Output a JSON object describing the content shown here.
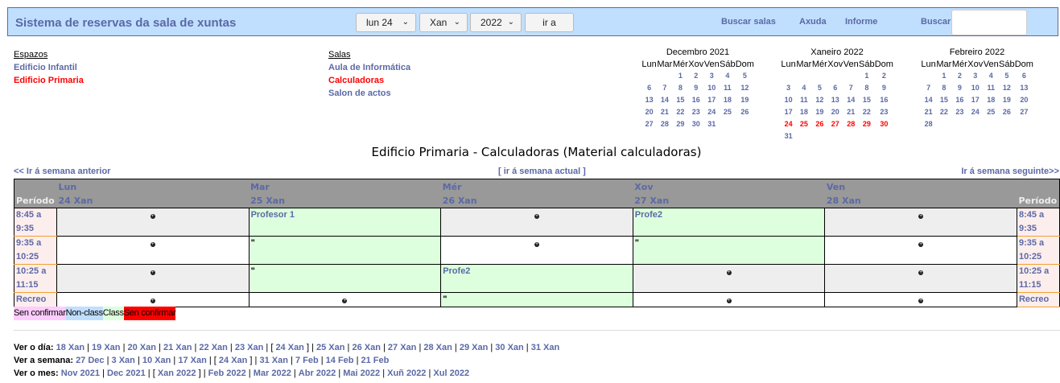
{
  "header": {
    "title": "Sistema de reservas da sala de xuntas",
    "day_select": "lun 24",
    "month_select": "Xan",
    "year_select": "2022",
    "goto_label": "ir a",
    "links": [
      "Buscar salas",
      "Axuda",
      "Informe"
    ],
    "search_label": "Buscar",
    "search_value": ""
  },
  "areas": {
    "heading": "Espazos",
    "items": [
      {
        "label": "Edificio Infantil",
        "selected": false
      },
      {
        "label": "Edificio Primaria",
        "selected": true
      }
    ]
  },
  "rooms": {
    "heading": "Salas",
    "items": [
      {
        "label": "Aula de Informática",
        "selected": false
      },
      {
        "label": "Calculadoras",
        "selected": true
      },
      {
        "label": "Salon de actos",
        "selected": false
      }
    ]
  },
  "calendars": [
    {
      "title": "Decembro 2021",
      "weekdays": [
        "Lun",
        "Mar",
        "Mér",
        "Xov",
        "Ven",
        "Sáb",
        "Dom"
      ],
      "weeks": [
        [
          "",
          "",
          "1",
          "2",
          "3",
          "4",
          "5"
        ],
        [
          "6",
          "7",
          "8",
          "9",
          "10",
          "11",
          "12"
        ],
        [
          "13",
          "14",
          "15",
          "16",
          "17",
          "18",
          "19"
        ],
        [
          "20",
          "21",
          "22",
          "23",
          "24",
          "25",
          "26"
        ],
        [
          "27",
          "28",
          "29",
          "30",
          "31",
          "",
          ""
        ]
      ],
      "highlight_week": -1
    },
    {
      "title": "Xaneiro 2022",
      "weekdays": [
        "Lun",
        "Mar",
        "Mér",
        "Xov",
        "Ven",
        "Sáb",
        "Dom"
      ],
      "weeks": [
        [
          "",
          "",
          "",
          "",
          "",
          "1",
          "2"
        ],
        [
          "3",
          "4",
          "5",
          "6",
          "7",
          "8",
          "9"
        ],
        [
          "10",
          "11",
          "12",
          "13",
          "14",
          "15",
          "16"
        ],
        [
          "17",
          "18",
          "19",
          "20",
          "21",
          "22",
          "23"
        ],
        [
          "24",
          "25",
          "26",
          "27",
          "28",
          "29",
          "30"
        ],
        [
          "31",
          "",
          "",
          "",
          "",
          "",
          ""
        ]
      ],
      "highlight_week": 4
    },
    {
      "title": "Febreiro 2022",
      "weekdays": [
        "Lun",
        "Mar",
        "Mér",
        "Xov",
        "Ven",
        "Sáb",
        "Dom"
      ],
      "weeks": [
        [
          "",
          "1",
          "2",
          "3",
          "4",
          "5",
          "6"
        ],
        [
          "7",
          "8",
          "9",
          "10",
          "11",
          "12",
          "13"
        ],
        [
          "14",
          "15",
          "16",
          "17",
          "18",
          "19",
          "20"
        ],
        [
          "21",
          "22",
          "23",
          "24",
          "25",
          "26",
          "27"
        ],
        [
          "28",
          "",
          "",
          "",
          "",
          "",
          ""
        ]
      ],
      "highlight_week": -1
    }
  ],
  "page_heading": "Edificio Primaria - Calculadoras (Material calculadoras)",
  "nav": {
    "prev": "<< Ir á semana anterior",
    "current": "ir á semana actual",
    "next": "Ir á semana seguinte>>"
  },
  "grid": {
    "period_label": "Período",
    "days": [
      {
        "name": "Lun",
        "date": "24 Xan"
      },
      {
        "name": "Mar",
        "date": "25 Xan"
      },
      {
        "name": "Mér",
        "date": "26 Xan"
      },
      {
        "name": "Xov",
        "date": "27 Xan"
      },
      {
        "name": "Ven",
        "date": "28 Xan"
      }
    ],
    "rows": [
      {
        "period": [
          "8:45 a",
          "9:35"
        ],
        "cells": [
          {
            "type": "empty"
          },
          {
            "type": "class",
            "text": "Profesor 1"
          },
          {
            "type": "empty"
          },
          {
            "type": "class",
            "text": "Profe2"
          },
          {
            "type": "empty"
          }
        ]
      },
      {
        "period": [
          "9:35 a",
          "10:25"
        ],
        "cells": [
          {
            "type": "empty"
          },
          {
            "type": "class",
            "text": "\""
          },
          {
            "type": "empty"
          },
          {
            "type": "class",
            "text": "\""
          },
          {
            "type": "empty"
          }
        ]
      },
      {
        "period": [
          "10:25 a",
          "11:15"
        ],
        "cells": [
          {
            "type": "empty"
          },
          {
            "type": "class",
            "text": "\""
          },
          {
            "type": "class",
            "text": "Profe2"
          },
          {
            "type": "empty"
          },
          {
            "type": "empty"
          }
        ]
      },
      {
        "period": [
          "Recreo"
        ],
        "cells": [
          {
            "type": "empty"
          },
          {
            "type": "empty"
          },
          {
            "type": "class",
            "text": "\""
          },
          {
            "type": "empty"
          },
          {
            "type": "empty"
          }
        ]
      }
    ]
  },
  "legend": [
    {
      "label": "Sen confirmar",
      "color": "#ffccff"
    },
    {
      "label": "Non-class",
      "color": "#c0dffe"
    },
    {
      "label": "Class",
      "color": "#ddffdd"
    },
    {
      "label": "Sen confirmar",
      "color": "#ff0000"
    }
  ],
  "footer": {
    "day": {
      "label": "Ver o día:",
      "items": [
        "18 Xan",
        "19 Xan",
        "20 Xan",
        "21 Xan",
        "22 Xan",
        "23 Xan",
        "[ 24 Xan ]",
        "25 Xan",
        "26 Xan",
        "27 Xan",
        "28 Xan",
        "29 Xan",
        "30 Xan",
        "31 Xan"
      ]
    },
    "week": {
      "label": "Ver a semana:",
      "items": [
        "27 Dec",
        "3 Xan",
        "10 Xan",
        "17 Xan",
        "[ 24 Xan ]",
        "31 Xan",
        "7 Feb",
        "14 Feb",
        "21 Feb"
      ]
    },
    "month": {
      "label": "Ver o mes:",
      "items": [
        "Nov 2021",
        "Dec 2021",
        "[ Xan 2022 ]",
        "Feb 2022",
        "Mar 2022",
        "Abr 2022",
        "Mai 2022",
        "Xuñ 2022",
        "Xul 2022"
      ]
    }
  }
}
